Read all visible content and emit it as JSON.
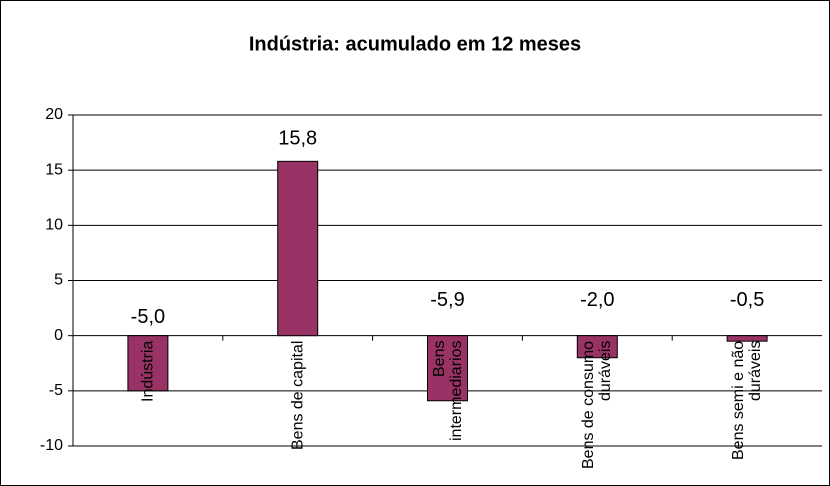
{
  "chart_data": {
    "type": "bar",
    "title": "Indústria: acumulado em 12 meses",
    "categories": [
      "Indústria",
      "Bens de capital",
      "Bens intermediarios",
      "Bens de consumo duráveis",
      "Bens semi e não duráveis"
    ],
    "values": [
      -5.0,
      15.8,
      -5.9,
      -2.0,
      -0.5
    ],
    "value_labels": [
      "-5,0",
      "15,8",
      "-5,9",
      "-2,0",
      "-0,5"
    ],
    "color": "#993366",
    "ylim": [
      -10,
      20
    ],
    "yticks": [
      -10,
      -5,
      0,
      5,
      10,
      15,
      20
    ],
    "grid": true
  }
}
